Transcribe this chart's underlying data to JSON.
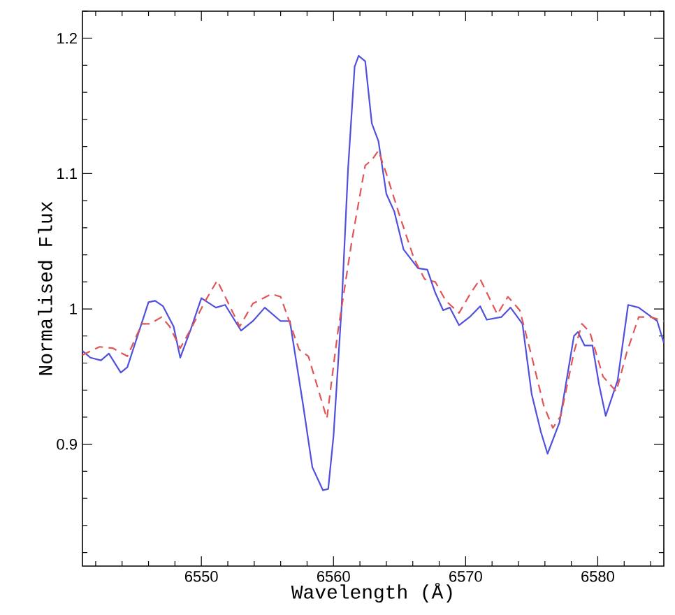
{
  "chart_data": {
    "type": "line",
    "xlabel": "Wavelength (Å)",
    "ylabel": "Normalised Flux",
    "xlim": [
      6541,
      6585
    ],
    "ylim": [
      0.81,
      1.22
    ],
    "xticks": [
      {
        "value": 6542,
        "label": null
      },
      {
        "value": 6544,
        "label": null
      },
      {
        "value": 6546,
        "label": null
      },
      {
        "value": 6548,
        "label": null
      },
      6550,
      {
        "value": 6552,
        "label": null
      },
      {
        "value": 6554,
        "label": null
      },
      {
        "value": 6556,
        "label": null
      },
      {
        "value": 6558,
        "label": null
      },
      6560,
      {
        "value": 6562,
        "label": null
      },
      {
        "value": 6564,
        "label": null
      },
      {
        "value": 6566,
        "label": null
      },
      {
        "value": 6568,
        "label": null
      },
      6570,
      {
        "value": 6572,
        "label": null
      },
      {
        "value": 6574,
        "label": null
      },
      {
        "value": 6576,
        "label": null
      },
      {
        "value": 6578,
        "label": null
      },
      6580,
      {
        "value": 6582,
        "label": null
      },
      {
        "value": 6584,
        "label": null
      }
    ],
    "yticks": [
      {
        "value": 0.82,
        "label": null
      },
      {
        "value": 0.84,
        "label": null
      },
      {
        "value": 0.86,
        "label": null
      },
      {
        "value": 0.88,
        "label": null
      },
      0.9,
      {
        "value": 0.92,
        "label": null
      },
      {
        "value": 0.94,
        "label": null
      },
      {
        "value": 0.96,
        "label": null
      },
      {
        "value": 0.98,
        "label": null
      },
      1,
      {
        "value": 1.02,
        "label": null
      },
      {
        "value": 1.04,
        "label": null
      },
      {
        "value": 1.06,
        "label": null
      },
      {
        "value": 1.08,
        "label": null
      },
      1.1,
      {
        "value": 1.12,
        "label": null
      },
      {
        "value": 1.14,
        "label": null
      },
      {
        "value": 1.16,
        "label": null
      },
      {
        "value": 1.18,
        "label": null
      },
      1.2,
      {
        "value": 1.22,
        "label": null
      }
    ],
    "grid": false,
    "marker": "none",
    "series": [
      {
        "color": "#5050dd",
        "line_style": "solid",
        "x": [
          6541,
          6541.6,
          6542.4,
          6543.0,
          6543.9,
          6544.4,
          6545.2,
          6546.0,
          6546.5,
          6547.1,
          6547.9,
          6548.4,
          6549.2,
          6550.0,
          6551.1,
          6551.8,
          6553.0,
          6553.9,
          6554.8,
          6556.0,
          6556.7,
          6557.7,
          6558.4,
          6559.2,
          6559.6,
          6560.0,
          6560.6,
          6561.1,
          6561.6,
          6561.9,
          6562.4,
          6562.9,
          6563.4,
          6564.0,
          6564.6,
          6565.3,
          6566.4,
          6567.1,
          6567.7,
          6568.3,
          6568.8,
          6569.5,
          6570.3,
          6571.1,
          6571.6,
          6572.7,
          6573.4,
          6574.3,
          6575.0,
          6575.7,
          6576.2,
          6577.1,
          6578.2,
          6578.5,
          6579.0,
          6579.6,
          6580.1,
          6580.6,
          6581.5,
          6582.3,
          6583.1,
          6583.8,
          6584.5,
          6585
        ],
        "values": [
          0.969,
          0.964,
          0.962,
          0.967,
          0.953,
          0.957,
          0.981,
          1.005,
          1.006,
          1.002,
          0.987,
          0.964,
          0.985,
          1.008,
          1.001,
          1.003,
          0.984,
          0.991,
          1.001,
          0.991,
          0.991,
          0.929,
          0.883,
          0.866,
          0.867,
          0.906,
          0.999,
          1.103,
          1.179,
          1.187,
          1.183,
          1.137,
          1.124,
          1.085,
          1.072,
          1.044,
          1.03,
          1.029,
          1.012,
          0.999,
          1.001,
          0.988,
          0.994,
          1.002,
          0.992,
          0.994,
          1.001,
          0.989,
          0.937,
          0.909,
          0.893,
          0.916,
          0.98,
          0.983,
          0.973,
          0.973,
          0.944,
          0.921,
          0.947,
          1.003,
          1.001,
          0.996,
          0.991,
          0.975
        ]
      },
      {
        "color": "#e05555",
        "line_style": "dashed",
        "x": [
          6541,
          6542.3,
          6543.3,
          6544.4,
          6545.5,
          6546.1,
          6547.0,
          6547.6,
          6548.4,
          6549.3,
          6550.3,
          6551.2,
          6551.9,
          6552.9,
          6553.9,
          6555.3,
          6556.0,
          6557.4,
          6558.1,
          6559.5,
          6560.3,
          6561.4,
          6562.4,
          6562.9,
          6563.4,
          6564.0,
          6565.0,
          6566.1,
          6566.9,
          6567.7,
          6568.5,
          6569.5,
          6570.4,
          6571.1,
          6571.6,
          6572.4,
          6573.2,
          6574.1,
          6575.0,
          6575.9,
          6576.6,
          6577.2,
          6578.2,
          6578.8,
          6579.4,
          6580.4,
          6581.4,
          6582.2,
          6583.1,
          6584.0,
          6585
        ],
        "values": [
          0.966,
          0.972,
          0.971,
          0.965,
          0.989,
          0.989,
          0.994,
          0.987,
          0.971,
          0.987,
          1.006,
          1.021,
          1.007,
          0.987,
          1.004,
          1.011,
          1.009,
          0.97,
          0.965,
          0.919,
          0.981,
          1.051,
          1.106,
          1.11,
          1.117,
          1.1,
          1.069,
          1.037,
          1.022,
          1.02,
          1.006,
          0.997,
          1.012,
          1.022,
          1.012,
          0.996,
          1.009,
          0.999,
          0.965,
          0.929,
          0.912,
          0.921,
          0.968,
          0.989,
          0.983,
          0.95,
          0.939,
          0.968,
          0.994,
          0.994,
          0.991
        ]
      }
    ]
  }
}
